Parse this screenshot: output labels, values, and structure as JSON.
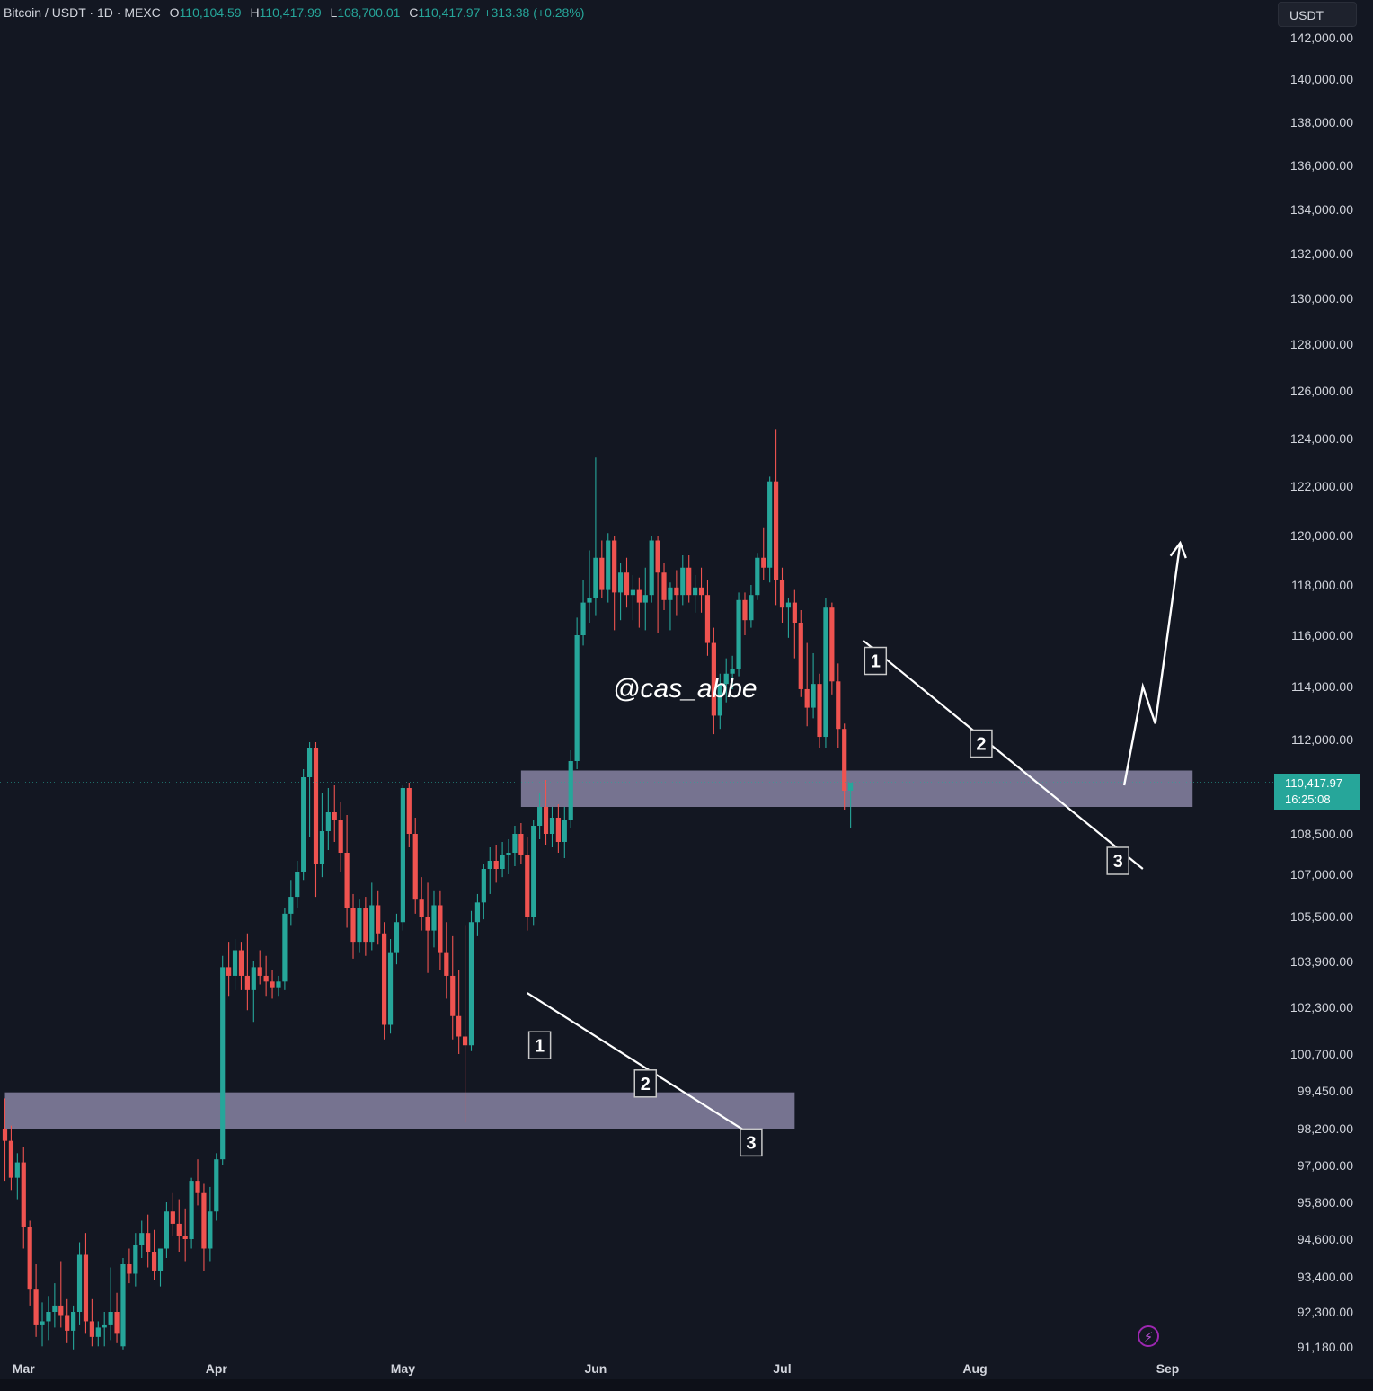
{
  "header": {
    "symbol": "Bitcoin / USDT · 1D · MEXC",
    "open_key": "O",
    "open": "110,104.59",
    "high_key": "H",
    "high": "110,417.99",
    "low_key": "L",
    "low": "108,700.01",
    "close_key": "C",
    "close": "110,417.97",
    "change": "+313.38 (+0.28%)"
  },
  "currency_button": "USDT",
  "watermark": "@cas_abbe",
  "last_price": {
    "price": "110,417.97",
    "countdown": "16:25:08",
    "color": "#26a69a"
  },
  "colors": {
    "up": "#26a69a",
    "down": "#ef5350",
    "zone": "#8c88a8",
    "background": "#131722"
  },
  "icons": {
    "bolt": "lightning-bolt-icon"
  },
  "chart_data": {
    "type": "candlestick",
    "title": "",
    "xlabel": "",
    "ylabel": "",
    "price_axis_unit": "USDT",
    "x_ticks": [
      "Mar",
      "Apr",
      "May",
      "Jun",
      "Jul",
      "Aug",
      "Sep"
    ],
    "y_ticks": [
      142000,
      140000,
      138000,
      136000,
      134000,
      132000,
      130000,
      128000,
      126000,
      124000,
      122000,
      120000,
      118000,
      116000,
      114000,
      112000,
      108500,
      107000,
      105500,
      103900,
      102300,
      100700,
      99450,
      98200,
      97000,
      95800,
      94600,
      93400,
      92300,
      91180
    ],
    "y_tick_labels": [
      "142,000.00",
      "140,000.00",
      "138,000.00",
      "136,000.00",
      "134,000.00",
      "132,000.00",
      "130,000.00",
      "128,000.00",
      "126,000.00",
      "124,000.00",
      "122,000.00",
      "120,000.00",
      "118,000.00",
      "116,000.00",
      "114,000.00",
      "112,000.00",
      "108,500.00",
      "107,000.00",
      "105,500.00",
      "103,900.00",
      "102,300.00",
      "100,700.00",
      "99,450.00",
      "98,200.00",
      "97,000.00",
      "95,800.00",
      "94,600.00",
      "93,400.00",
      "92,300.00",
      "91,180.00"
    ],
    "ylim": [
      91180,
      142000
    ],
    "grid": false,
    "last_close": 110417.97,
    "series": [
      {
        "values": [
          [
            98200,
            99200,
            96500,
            97800
          ],
          [
            97800,
            98300,
            96200,
            96600
          ],
          [
            96600,
            97400,
            95900,
            97100
          ],
          [
            97100,
            97600,
            94300,
            95000
          ],
          [
            95000,
            95200,
            92500,
            93000
          ],
          [
            93000,
            93800,
            91500,
            91900
          ],
          [
            91900,
            92600,
            91200,
            92000
          ],
          [
            92000,
            92800,
            91400,
            92300
          ],
          [
            92300,
            93200,
            91800,
            92500
          ],
          [
            92500,
            93900,
            91800,
            92200
          ],
          [
            92200,
            92700,
            91300,
            91700
          ],
          [
            91700,
            92500,
            91100,
            92300
          ],
          [
            92300,
            94500,
            91900,
            94100
          ],
          [
            94100,
            94800,
            91600,
            92000
          ],
          [
            92000,
            92700,
            91200,
            91500
          ],
          [
            91500,
            92000,
            91200,
            91800
          ],
          [
            91800,
            92300,
            91200,
            91900
          ],
          [
            91900,
            93700,
            91400,
            92300
          ],
          [
            92300,
            92900,
            91300,
            91600
          ],
          [
            91200,
            94000,
            91100,
            93800
          ],
          [
            93800,
            94300,
            93200,
            93500
          ],
          [
            93500,
            94800,
            93100,
            94400
          ],
          [
            94400,
            95200,
            94000,
            94800
          ],
          [
            94800,
            95400,
            93700,
            94200
          ],
          [
            94200,
            94900,
            93300,
            93600
          ],
          [
            93600,
            94300,
            93100,
            94300
          ],
          [
            94300,
            95800,
            94000,
            95500
          ],
          [
            95500,
            96100,
            94700,
            95100
          ],
          [
            95100,
            95900,
            94200,
            94700
          ],
          [
            94700,
            95600,
            93900,
            94600
          ],
          [
            94600,
            96600,
            94300,
            96500
          ],
          [
            96500,
            97200,
            95700,
            96100
          ],
          [
            96100,
            96400,
            93600,
            94300
          ],
          [
            94300,
            96300,
            93900,
            95500
          ],
          [
            95500,
            97400,
            95200,
            97200
          ],
          [
            97200,
            104100,
            97000,
            103700
          ],
          [
            103700,
            104600,
            102700,
            103400
          ],
          [
            103400,
            104700,
            102900,
            104300
          ],
          [
            104300,
            104600,
            102900,
            103400
          ],
          [
            103400,
            104900,
            102200,
            102900
          ],
          [
            102900,
            103900,
            101800,
            103700
          ],
          [
            103700,
            104300,
            103100,
            103400
          ],
          [
            103400,
            104100,
            102700,
            103200
          ],
          [
            103200,
            103600,
            102600,
            103000
          ],
          [
            103000,
            103400,
            102700,
            103200
          ],
          [
            103200,
            105800,
            102900,
            105600
          ],
          [
            105600,
            106800,
            105200,
            106200
          ],
          [
            106200,
            107500,
            105800,
            107100
          ],
          [
            107100,
            110900,
            106800,
            110600
          ],
          [
            110600,
            111900,
            108400,
            111700
          ],
          [
            111700,
            111900,
            106200,
            107400
          ],
          [
            107400,
            110000,
            106900,
            108600
          ],
          [
            108600,
            110200,
            107900,
            109300
          ],
          [
            109300,
            110300,
            108200,
            109000
          ],
          [
            109000,
            109700,
            107100,
            107800
          ],
          [
            107800,
            109200,
            105100,
            105800
          ],
          [
            105800,
            106300,
            104000,
            104600
          ],
          [
            104600,
            106100,
            104200,
            105800
          ],
          [
            105800,
            106200,
            104100,
            104600
          ],
          [
            104600,
            106700,
            104300,
            105900
          ],
          [
            105900,
            106400,
            104500,
            104900
          ],
          [
            104900,
            105300,
            101200,
            101700
          ],
          [
            101700,
            104700,
            101400,
            104200
          ],
          [
            104200,
            105600,
            103800,
            105300
          ],
          [
            105300,
            110300,
            105000,
            110200
          ],
          [
            110200,
            110400,
            108000,
            108500
          ],
          [
            108500,
            109100,
            105600,
            106100
          ],
          [
            106100,
            106900,
            105000,
            105500
          ],
          [
            105500,
            106700,
            103500,
            105000
          ],
          [
            105000,
            106400,
            104400,
            105900
          ],
          [
            105900,
            106400,
            103600,
            104200
          ],
          [
            104200,
            105300,
            102600,
            103400
          ],
          [
            103400,
            104800,
            101200,
            102000
          ],
          [
            102000,
            103600,
            100700,
            101300
          ],
          [
            101300,
            105200,
            98400,
            101000
          ],
          [
            101000,
            105700,
            100800,
            105300
          ],
          [
            105300,
            106300,
            104800,
            106000
          ],
          [
            106000,
            107400,
            105400,
            107200
          ],
          [
            107200,
            108000,
            106300,
            107500
          ],
          [
            107500,
            108100,
            106700,
            107200
          ],
          [
            107200,
            108200,
            106900,
            107700
          ],
          [
            107700,
            108300,
            107000,
            107800
          ],
          [
            107800,
            108800,
            107300,
            108500
          ],
          [
            108500,
            108900,
            107400,
            107700
          ],
          [
            107700,
            108400,
            105000,
            105500
          ],
          [
            105500,
            109000,
            105200,
            108800
          ],
          [
            108800,
            110000,
            108300,
            109500
          ],
          [
            109500,
            110500,
            108100,
            108500
          ],
          [
            108500,
            109500,
            108000,
            109100
          ],
          [
            109100,
            109600,
            107800,
            108200
          ],
          [
            108200,
            109500,
            107600,
            109000
          ],
          [
            109000,
            111600,
            108700,
            111200
          ],
          [
            111200,
            116700,
            110900,
            116000
          ],
          [
            116000,
            118200,
            115600,
            117300
          ],
          [
            117300,
            119400,
            116500,
            117500
          ],
          [
            117500,
            123200,
            116800,
            119100
          ],
          [
            119100,
            119800,
            117500,
            117800
          ],
          [
            117800,
            120100,
            117300,
            119800
          ],
          [
            119800,
            120000,
            116200,
            117700
          ],
          [
            117700,
            118900,
            116600,
            118500
          ],
          [
            118500,
            119100,
            117100,
            117600
          ],
          [
            117600,
            118400,
            116600,
            117800
          ],
          [
            117800,
            118300,
            116300,
            117300
          ],
          [
            117300,
            118700,
            116200,
            117600
          ],
          [
            117600,
            120000,
            117300,
            119800
          ],
          [
            119800,
            120000,
            116100,
            118500
          ],
          [
            118500,
            118900,
            117000,
            117400
          ],
          [
            117400,
            118100,
            116200,
            117900
          ],
          [
            117900,
            118600,
            116800,
            117600
          ],
          [
            117600,
            119200,
            117200,
            118700
          ],
          [
            118700,
            119200,
            117300,
            117600
          ],
          [
            117600,
            118400,
            116900,
            117900
          ],
          [
            117900,
            118700,
            116900,
            117600
          ],
          [
            117600,
            118200,
            115200,
            115700
          ],
          [
            115700,
            116300,
            112200,
            112900
          ],
          [
            112900,
            114500,
            112400,
            114100
          ],
          [
            114100,
            115100,
            113400,
            114500
          ],
          [
            114500,
            115200,
            113900,
            114700
          ],
          [
            114700,
            117700,
            114400,
            117400
          ],
          [
            117400,
            117700,
            116000,
            116600
          ],
          [
            116600,
            118000,
            116300,
            117600
          ],
          [
            117600,
            119300,
            117400,
            119100
          ],
          [
            119100,
            120300,
            118200,
            118700
          ],
          [
            118700,
            122400,
            118100,
            122200
          ],
          [
            122200,
            124400,
            117200,
            118200
          ],
          [
            118200,
            118700,
            116500,
            117100
          ],
          [
            117100,
            117500,
            115900,
            117300
          ],
          [
            117300,
            117800,
            115100,
            116500
          ],
          [
            116500,
            117000,
            113600,
            113900
          ],
          [
            113900,
            115700,
            112500,
            113200
          ],
          [
            113200,
            115300,
            112800,
            114100
          ],
          [
            114100,
            114500,
            111700,
            112100
          ],
          [
            112100,
            117500,
            111700,
            117100
          ],
          [
            117100,
            117300,
            113700,
            114200
          ],
          [
            114200,
            114900,
            111700,
            112400
          ],
          [
            112400,
            112600,
            109400,
            110100
          ],
          [
            110100,
            110400,
            108700,
            110400
          ]
        ]
      }
    ],
    "annotations": [
      {
        "type": "zone",
        "label": "",
        "y_range": [
          109500,
          110850
        ],
        "x_range": [
          "May 20",
          "Sep 5"
        ]
      },
      {
        "type": "zone",
        "label": "",
        "y_range": [
          98200,
          99400
        ],
        "x_range": [
          "Feb 26",
          "Jul 3"
        ]
      },
      {
        "type": "trendline",
        "points": [
          [
            102800,
            "May 21"
          ],
          [
            98000,
            "Jun 26"
          ]
        ]
      },
      {
        "type": "trendline",
        "points": [
          [
            115800,
            "Jul 14"
          ],
          [
            107200,
            "Aug 28"
          ]
        ]
      },
      {
        "type": "wave_label",
        "text": "1"
      },
      {
        "type": "wave_label",
        "text": "2"
      },
      {
        "type": "wave_label",
        "text": "3"
      },
      {
        "type": "wave_label",
        "text": "1"
      },
      {
        "type": "wave_label",
        "text": "2"
      },
      {
        "type": "wave_label",
        "text": "3"
      },
      {
        "type": "projection_arrow",
        "points": [
          [
            110300,
            "Aug 25"
          ],
          [
            114000,
            "Aug 28"
          ],
          [
            112600,
            "Aug 30"
          ],
          [
            119700,
            "Sep 3"
          ]
        ]
      }
    ]
  }
}
